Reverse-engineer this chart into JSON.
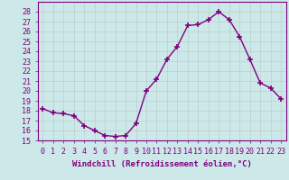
{
  "x": [
    0,
    1,
    2,
    3,
    4,
    5,
    6,
    7,
    8,
    9,
    10,
    11,
    12,
    13,
    14,
    15,
    16,
    17,
    18,
    19,
    20,
    21,
    22,
    23
  ],
  "y": [
    18.2,
    17.8,
    17.7,
    17.5,
    16.5,
    16.0,
    15.5,
    15.4,
    15.5,
    16.7,
    20.0,
    21.2,
    23.2,
    24.5,
    26.6,
    26.7,
    27.2,
    28.0,
    27.2,
    25.5,
    23.2,
    20.8,
    20.3,
    19.2
  ],
  "line_color": "#800080",
  "marker": "+",
  "markersize": 4,
  "linewidth": 1.0,
  "markeredgewidth": 1.2,
  "xlabel": "Windchill (Refroidissement éolien,°C)",
  "ylim": [
    15,
    29
  ],
  "xlim": [
    -0.5,
    23.5
  ],
  "yticks": [
    15,
    16,
    17,
    18,
    19,
    20,
    21,
    22,
    23,
    24,
    25,
    26,
    27,
    28
  ],
  "xticks": [
    0,
    1,
    2,
    3,
    4,
    5,
    6,
    7,
    8,
    9,
    10,
    11,
    12,
    13,
    14,
    15,
    16,
    17,
    18,
    19,
    20,
    21,
    22,
    23
  ],
  "bg_color": "#cce8e8",
  "grid_color": "#aaaaaa",
  "tick_color": "#800080",
  "xlabel_fontsize": 6.5,
  "tick_fontsize": 6.0
}
